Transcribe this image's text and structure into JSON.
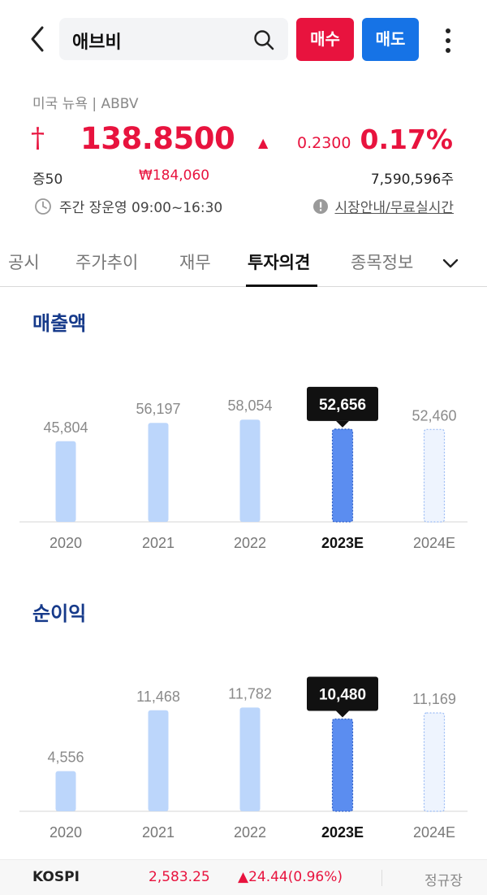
{
  "header": {
    "search_value": "애브비",
    "buy_label": "매수",
    "sell_label": "매도"
  },
  "stock": {
    "market_ticker": "미국 뉴욕 | ABBV",
    "price_marker": "†",
    "price": "138.8500",
    "change_arrow": "▲",
    "change": "0.2300",
    "change_pct": "0.17%",
    "exchange": "증50",
    "krw_price": "₩184,060",
    "volume": "7,590,596주",
    "hours": "주간 장운영 09:00~16:30",
    "info_link": "시장안내/무료실시간"
  },
  "tabs": [
    "공시",
    "주가추이",
    "재무",
    "투자의견",
    "종목정보"
  ],
  "active_tab": 3,
  "colors": {
    "up": "#e8133e",
    "buy": "#e8133e",
    "sell": "#1673e6",
    "title": "#163a8a",
    "bar_actual": "#bcd6fb",
    "bar_highlight": "#5b8df0",
    "bar_estimate": "#eef4fe",
    "tooltip": "#111111"
  },
  "chart_data": [
    {
      "type": "bar",
      "title": "매출액",
      "categories": [
        "2020",
        "2021",
        "2022",
        "2023E",
        "2024E"
      ],
      "values": [
        45804,
        56197,
        58054,
        52656,
        52460
      ],
      "labels": [
        "45,804",
        "56,197",
        "58,054",
        "52,656",
        "52,460"
      ],
      "highlight_index": 3,
      "estimate_index": 4,
      "ylim": [
        0,
        60000
      ]
    },
    {
      "type": "bar",
      "title": "순이익",
      "categories": [
        "2020",
        "2021",
        "2022",
        "2023E",
        "2024E"
      ],
      "values": [
        4556,
        11468,
        11782,
        10480,
        11169
      ],
      "labels": [
        "4,556",
        "11,468",
        "11,782",
        "10,480",
        "11,169"
      ],
      "highlight_index": 3,
      "estimate_index": 4,
      "ylim": [
        0,
        12000
      ]
    }
  ],
  "footer": {
    "index_name": "KOSPI",
    "index_value": "2,583.25",
    "index_change": "▲24.44(0.96%)",
    "session": "정규장"
  }
}
